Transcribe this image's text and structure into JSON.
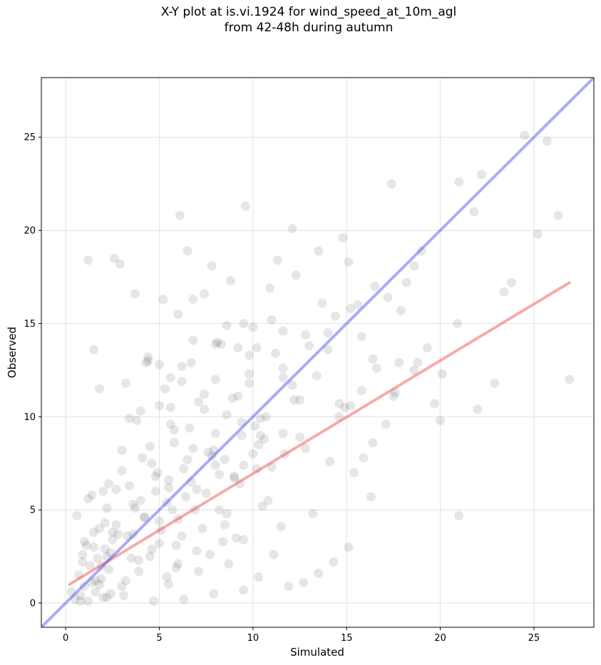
{
  "title_lines": [
    "X-Y plot at is.vi.1924 for wind_speed_at_10m_agl",
    "from 42-48h during autumn"
  ],
  "colors": {
    "points": "#4d4d4d",
    "regression": "#ee4444",
    "identity": "#4444ee",
    "grid": "#e6e6e6"
  },
  "chart_data": {
    "type": "scatter",
    "title": "X-Y plot at is.vi.1924 for wind_speed_at_10m_agl\nfrom 42-48h during autumn",
    "xlabel": "Simulated",
    "ylabel": "Observed",
    "xlim": [
      -1.3,
      28.2
    ],
    "ylim": [
      -1.3,
      28.2
    ],
    "xticks": [
      0,
      5,
      10,
      15,
      20,
      25
    ],
    "yticks": [
      0,
      5,
      10,
      15,
      20,
      25
    ],
    "xtick_labels": [
      "0",
      "5",
      "10",
      "15",
      "20",
      "25"
    ],
    "ytick_labels": [
      "0",
      "5",
      "10",
      "15",
      "20",
      "25"
    ],
    "grid": true,
    "series": [
      {
        "kind": "points",
        "marker": "circle",
        "x": [
          0.5,
          0.7,
          0.8,
          0.9,
          1.0,
          1.1,
          1.2,
          1.3,
          1.4,
          1.5,
          1.6,
          1.7,
          1.8,
          1.9,
          2.0,
          2.1,
          2.2,
          2.3,
          2.4,
          2.5,
          0.6,
          0.9,
          1.2,
          1.5,
          1.8,
          2.1,
          2.4,
          2.7,
          3.0,
          3.3,
          3.6,
          3.9,
          4.2,
          4.5,
          4.8,
          5.1,
          5.4,
          5.7,
          6.0,
          6.3,
          1.0,
          1.4,
          1.9,
          2.3,
          2.8,
          3.2,
          3.7,
          4.1,
          4.6,
          5.0,
          5.5,
          5.9,
          6.4,
          6.8,
          7.3,
          7.7,
          8.2,
          8.6,
          9.1,
          9.5,
          2.0,
          2.5,
          3.0,
          3.5,
          4.0,
          4.5,
          5.0,
          5.5,
          6.0,
          6.5,
          7.0,
          7.5,
          8.0,
          8.5,
          9.0,
          9.5,
          10.0,
          10.5,
          11.0,
          11.5,
          3.0,
          3.4,
          3.8,
          4.2,
          4.6,
          5.0,
          5.4,
          5.8,
          6.2,
          6.6,
          7.0,
          7.4,
          7.8,
          8.2,
          8.6,
          9.0,
          9.4,
          9.8,
          10.2,
          10.6,
          4.0,
          4.4,
          4.9,
          5.3,
          5.8,
          6.2,
          6.7,
          7.1,
          7.6,
          8.0,
          8.5,
          8.9,
          9.4,
          9.8,
          10.3,
          10.7,
          11.2,
          11.6,
          12.1,
          12.5,
          5.0,
          5.6,
          6.2,
          6.8,
          7.4,
          8.0,
          8.6,
          9.2,
          9.8,
          10.4,
          11.0,
          11.6,
          12.2,
          12.8,
          13.4,
          14.0,
          14.6,
          15.2,
          15.8,
          16.4,
          6.0,
          6.7,
          7.4,
          8.1,
          8.8,
          9.5,
          10.2,
          10.9,
          11.6,
          12.3,
          13.0,
          13.7,
          14.4,
          15.1,
          15.8,
          16.5,
          17.2,
          17.9,
          18.6,
          19.3,
          1.2,
          1.8,
          2.6,
          3.4,
          4.4,
          5.6,
          6.8,
          8.0,
          9.2,
          10.4,
          11.6,
          12.8,
          14.0,
          15.2,
          16.4,
          17.6,
          18.8,
          20.0,
          21.0,
          22.0,
          0.3,
          0.8,
          1.6,
          2.2,
          3.1,
          3.9,
          4.7,
          5.5,
          6.3,
          7.1,
          7.9,
          8.7,
          9.5,
          10.3,
          11.1,
          11.9,
          12.7,
          13.5,
          14.3,
          15.1,
          1.5,
          2.9,
          3.2,
          3.7,
          4.3,
          5.2,
          5.6,
          6.1,
          6.5,
          7.8,
          8.3,
          9.6,
          10.0,
          11.3,
          12.1,
          13.5,
          14.8,
          15.6,
          17.4,
          18.6,
          20.1,
          21.0,
          21.8,
          22.2,
          22.9,
          23.4,
          23.8,
          24.5,
          25.2,
          25.7,
          26.3,
          26.9,
          20.9,
          19.7,
          19.0,
          18.2,
          17.5,
          16.6,
          15.9,
          14.9,
          2.2,
          2.7,
          3.6,
          4.8,
          5.9,
          6.9,
          7.9,
          8.4,
          9.3,
          10.1,
          10.8,
          11.7,
          12.5,
          13.2,
          14.1,
          14.6,
          15.4,
          16.3,
          17.1,
          17.8
        ],
        "y": [
          0.2,
          1.5,
          0.4,
          2.6,
          0.9,
          3.1,
          0.1,
          2.0,
          1.1,
          3.8,
          0.6,
          2.4,
          4.0,
          1.3,
          0.3,
          2.9,
          5.1,
          1.8,
          0.5,
          3.4,
          4.7,
          2.2,
          5.6,
          3.0,
          1.0,
          4.3,
          2.7,
          6.1,
          0.9,
          3.6,
          5.3,
          1.7,
          4.6,
          2.5,
          6.8,
          3.9,
          1.4,
          5.0,
          2.1,
          7.2,
          3.3,
          5.8,
          2.0,
          6.4,
          3.7,
          1.2,
          5.1,
          7.8,
          2.9,
          4.4,
          6.6,
          3.1,
          5.7,
          8.3,
          4.0,
          2.6,
          6.9,
          4.8,
          3.5,
          7.4,
          6.0,
          3.8,
          7.1,
          2.4,
          5.5,
          8.4,
          3.2,
          6.2,
          4.5,
          7.7,
          2.8,
          5.9,
          9.1,
          4.2,
          6.7,
          3.4,
          8.0,
          5.2,
          7.3,
          4.1,
          8.2,
          6.3,
          9.8,
          4.6,
          7.5,
          10.6,
          5.4,
          8.6,
          3.6,
          9.4,
          6.1,
          11.2,
          7.9,
          5.0,
          10.1,
          6.8,
          9.0,
          11.8,
          7.2,
          8.8,
          10.3,
          13.0,
          7.0,
          11.5,
          9.3,
          12.7,
          6.5,
          10.8,
          8.1,
          13.9,
          7.7,
          11.0,
          9.7,
          12.3,
          8.5,
          10.0,
          13.4,
          9.1,
          11.7,
          8.9,
          12.8,
          9.6,
          11.9,
          14.1,
          10.4,
          12.0,
          14.9,
          11.1,
          13.3,
          9.9,
          15.2,
          12.6,
          10.9,
          14.4,
          12.2,
          13.6,
          10.7,
          15.8,
          11.4,
          13.1,
          15.5,
          12.9,
          16.6,
          14.0,
          17.3,
          15.0,
          13.7,
          16.9,
          14.6,
          17.6,
          13.8,
          16.1,
          15.4,
          18.3,
          14.3,
          17.0,
          16.4,
          15.7,
          12.5,
          13.7,
          18.4,
          11.5,
          18.5,
          9.9,
          13.2,
          10.5,
          16.3,
          7.4,
          13.7,
          9.0,
          12.1,
          8.3,
          14.5,
          10.6,
          8.6,
          11.3,
          12.9,
          9.8,
          4.7,
          10.4,
          0.6,
          0.1,
          1.2,
          0.3,
          0.4,
          2.3,
          0.1,
          1.0,
          0.2,
          1.7,
          0.5,
          2.1,
          0.7,
          1.4,
          2.6,
          0.9,
          1.1,
          1.6,
          2.2,
          3.0,
          13.6,
          18.2,
          11.8,
          16.6,
          12.9,
          16.3,
          12.1,
          20.8,
          18.9,
          18.1,
          13.9,
          21.3,
          14.8,
          18.4,
          20.1,
          18.9,
          19.6,
          16.0,
          22.5,
          18.1,
          12.3,
          22.6,
          21.0,
          23.0,
          11.8,
          16.7,
          17.2,
          25.1,
          19.8,
          24.8,
          20.8,
          12.0,
          15.0,
          10.7,
          18.9,
          17.2,
          11.1,
          12.6,
          7.8,
          10.5,
          2.5,
          4.2,
          3.7,
          6.0,
          1.9,
          5.0,
          8.2,
          3.3,
          6.4,
          9.5,
          5.5,
          8.0,
          10.9,
          4.8,
          7.6,
          10.0,
          7.0,
          5.7,
          9.6,
          12.9
        ]
      },
      {
        "kind": "line",
        "name": "",
        "x": [
          0.2,
          26.9
        ],
        "y": [
          1.0,
          17.2
        ]
      },
      {
        "kind": "line",
        "name": "",
        "x": [
          -1.3,
          28.2
        ],
        "y": [
          -1.3,
          28.2
        ]
      }
    ]
  }
}
